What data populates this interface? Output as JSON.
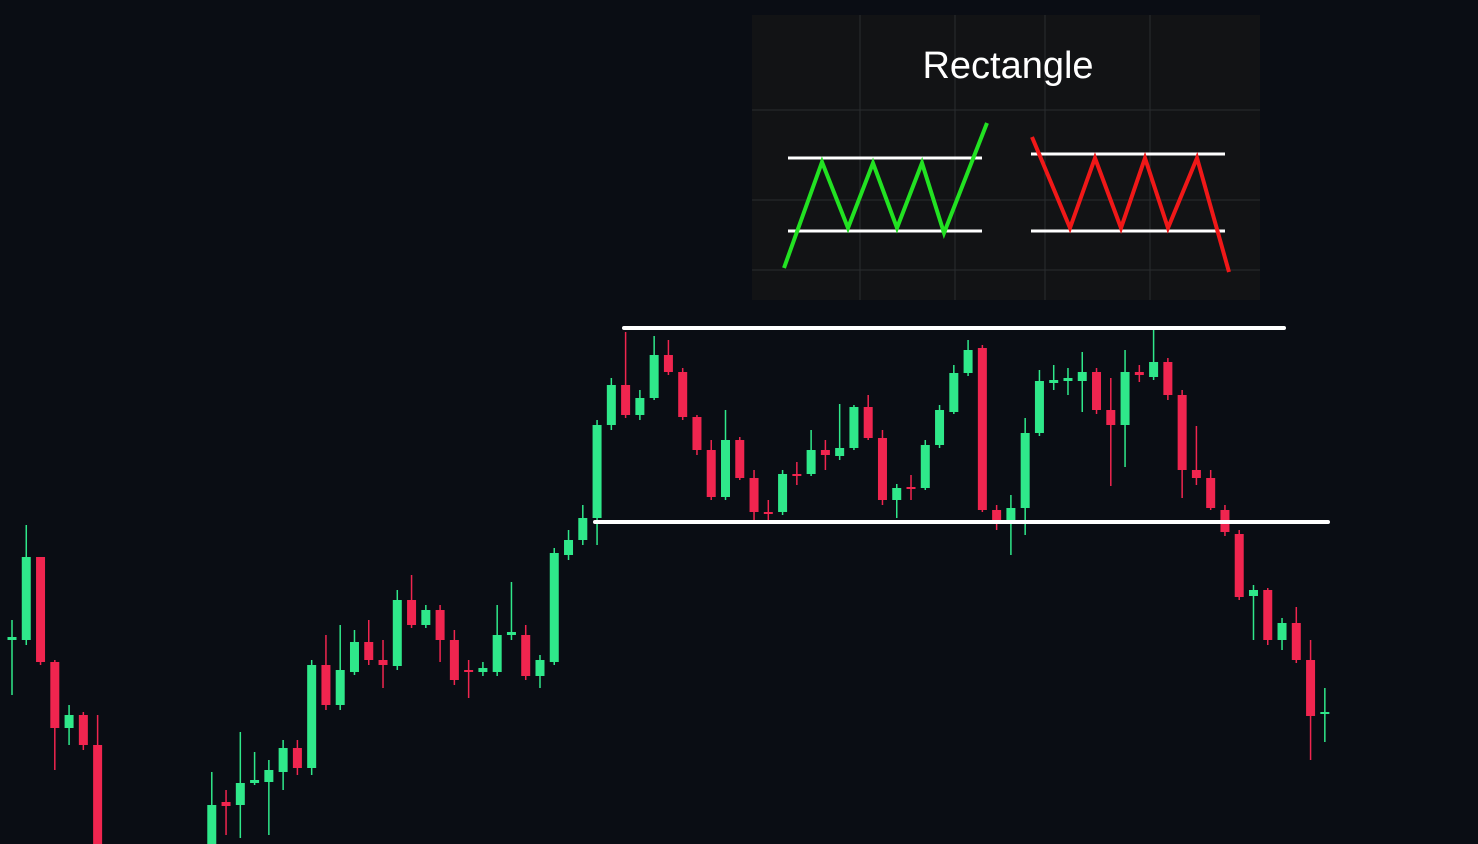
{
  "chart_data": {
    "type": "candlestick",
    "title": "Rectangle",
    "up_color": "#2fe88a",
    "down_color": "#f0254f",
    "level_color": "#ffffff",
    "levels": [
      516,
      322
    ],
    "candles": [
      [
        204,
        224,
        149,
        207
      ],
      [
        204,
        319,
        199,
        287
      ],
      [
        287,
        287,
        179,
        182
      ],
      [
        182,
        184,
        74,
        116
      ],
      [
        116,
        139,
        99,
        129
      ],
      [
        129,
        132,
        94,
        99
      ],
      [
        99,
        129,
        0,
        0
      ],
      null,
      null,
      null,
      null,
      null,
      null,
      null,
      [
        0,
        72,
        0,
        39
      ],
      [
        42,
        54,
        9,
        38
      ],
      [
        39,
        112,
        6,
        61
      ],
      [
        61,
        92,
        59,
        64
      ],
      [
        62,
        84,
        9,
        74
      ],
      [
        72,
        104,
        54,
        96
      ],
      [
        96,
        104,
        69,
        76
      ],
      [
        76,
        184,
        69,
        179
      ],
      [
        179,
        209,
        134,
        139
      ],
      [
        139,
        219,
        134,
        174
      ],
      [
        172,
        214,
        169,
        202
      ],
      [
        202,
        224,
        179,
        184
      ],
      [
        184,
        204,
        156,
        179
      ],
      [
        178,
        254,
        174,
        244
      ],
      [
        244,
        269,
        216,
        219
      ],
      [
        219,
        239,
        216,
        234
      ],
      [
        234,
        239,
        182,
        204
      ],
      [
        204,
        214,
        159,
        164
      ],
      [
        174,
        184,
        146,
        172
      ],
      [
        172,
        182,
        168,
        176
      ],
      [
        172,
        239,
        168,
        209
      ],
      [
        209,
        262,
        204,
        212
      ],
      [
        209,
        219,
        164,
        168
      ],
      [
        168,
        189,
        156,
        184
      ],
      [
        182,
        296,
        179,
        291
      ],
      [
        289,
        314,
        284,
        304
      ],
      [
        304,
        339,
        299,
        326
      ],
      [
        326,
        424,
        299,
        419
      ],
      [
        419,
        466,
        414,
        459
      ],
      [
        459,
        512,
        426,
        429
      ],
      [
        429,
        454,
        424,
        446
      ],
      [
        446,
        508,
        444,
        489
      ],
      [
        489,
        504,
        469,
        472
      ],
      [
        472,
        476,
        424,
        427
      ],
      [
        427,
        429,
        389,
        394
      ],
      [
        394,
        404,
        344,
        347
      ],
      [
        347,
        434,
        344,
        404
      ],
      [
        404,
        407,
        364,
        366
      ],
      [
        366,
        374,
        324,
        332
      ],
      [
        332,
        344,
        324,
        330
      ],
      [
        332,
        374,
        329,
        370
      ],
      [
        370,
        382,
        359,
        368
      ],
      [
        370,
        414,
        368,
        394
      ],
      [
        394,
        404,
        374,
        389
      ],
      [
        388,
        440,
        384,
        396
      ],
      [
        396,
        439,
        394,
        437
      ],
      [
        437,
        449,
        404,
        406
      ],
      [
        406,
        414,
        339,
        344
      ],
      [
        344,
        360,
        326,
        356
      ],
      [
        357,
        369,
        344,
        355
      ],
      [
        356,
        404,
        354,
        399
      ],
      [
        399,
        439,
        396,
        434
      ],
      [
        432,
        479,
        430,
        471
      ],
      [
        471,
        504,
        468,
        494
      ],
      [
        496,
        499,
        332,
        334
      ],
      [
        334,
        339,
        314,
        324
      ],
      [
        324,
        349,
        289,
        336
      ],
      [
        336,
        426,
        309,
        411
      ],
      [
        411,
        474,
        408,
        463
      ],
      [
        461,
        479,
        454,
        464
      ],
      [
        463,
        476,
        449,
        466
      ],
      [
        463,
        492,
        432,
        472
      ],
      [
        472,
        476,
        430,
        434
      ],
      [
        434,
        466,
        358,
        419
      ],
      [
        419,
        494,
        377,
        472
      ],
      [
        472,
        479,
        462,
        469
      ],
      [
        467,
        514,
        464,
        482
      ],
      [
        482,
        486,
        444,
        449
      ],
      [
        449,
        454,
        346,
        374
      ],
      [
        374,
        418,
        359,
        366
      ],
      [
        366,
        374,
        334,
        336
      ],
      [
        334,
        339,
        308,
        312
      ],
      [
        310,
        314,
        244,
        247
      ],
      [
        248,
        259,
        204,
        254
      ],
      [
        254,
        256,
        199,
        204
      ],
      [
        204,
        226,
        194,
        221
      ],
      [
        221,
        237,
        181,
        184
      ],
      [
        184,
        204,
        84,
        128
      ],
      [
        130,
        156,
        102,
        132
      ]
    ]
  }
}
